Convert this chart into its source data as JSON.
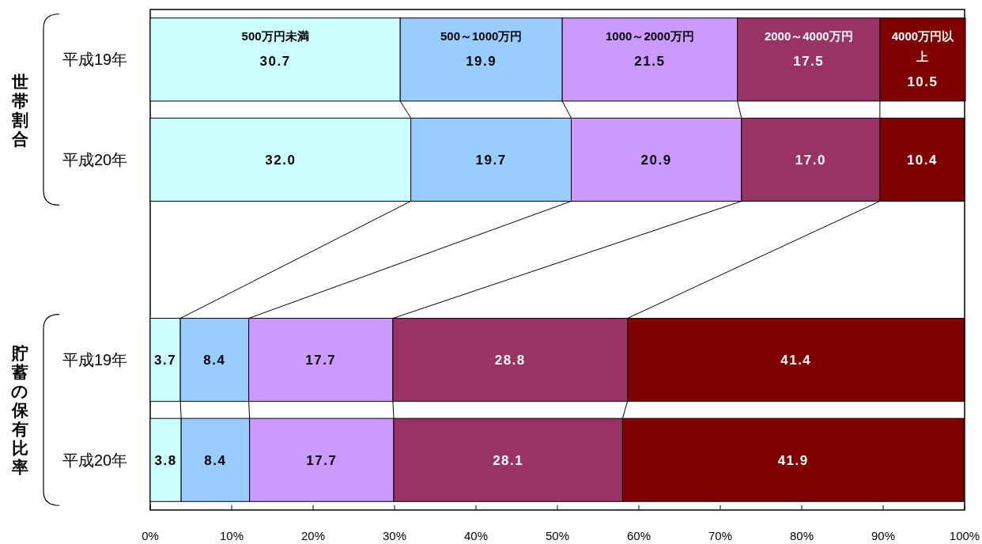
{
  "chart_data": {
    "type": "bar",
    "orientation": "horizontal",
    "stacked": true,
    "categories": [
      "平成19年",
      "平成20年",
      null,
      "平成19年",
      "平成20年"
    ],
    "series": [
      {
        "name": "500万円未満",
        "color": "#ccffff",
        "values": [
          30.7,
          32.0,
          null,
          3.7,
          3.8
        ],
        "value_labels": [
          "30.7",
          "32.0",
          null,
          "3.7",
          "3.8"
        ]
      },
      {
        "name": "500～1000万円",
        "color": "#99ccff",
        "values": [
          19.9,
          19.7,
          null,
          8.4,
          8.4
        ],
        "value_labels": [
          "19.9",
          "19.7",
          null,
          "8.4",
          "8.4"
        ]
      },
      {
        "name": "1000～2000万円",
        "color": "#cc99ff",
        "values": [
          21.5,
          20.9,
          null,
          17.7,
          17.7
        ],
        "value_labels": [
          "21.5",
          "20.9",
          null,
          "17.7",
          "17.7"
        ]
      },
      {
        "name": "2000～4000万円",
        "color": "#993366",
        "values": [
          17.5,
          17.0,
          null,
          28.8,
          28.1
        ],
        "value_labels": [
          "17.5",
          "17.0",
          null,
          "28.8",
          "28.1"
        ]
      },
      {
        "name": "4000万円以上",
        "color": "#800000",
        "values": [
          10.5,
          10.4,
          null,
          41.4,
          41.9
        ],
        "value_labels": [
          "10.5",
          "10.4",
          null,
          "41.4",
          "41.9"
        ]
      }
    ],
    "xlim": [
      0,
      100
    ],
    "xticks": [
      {
        "value": 0,
        "label": "0%"
      },
      {
        "value": 10,
        "label": "10%"
      },
      {
        "value": 20,
        "label": "20%"
      },
      {
        "value": 30,
        "label": "30%"
      },
      {
        "value": 40,
        "label": "40%"
      },
      {
        "value": 50,
        "label": "50%"
      },
      {
        "value": 60,
        "label": "60%"
      },
      {
        "value": 70,
        "label": "70%"
      },
      {
        "value": 80,
        "label": "80%"
      },
      {
        "value": 90,
        "label": "90%"
      },
      {
        "value": 100,
        "label": "100%"
      }
    ],
    "annotations": [
      "世帯割合",
      "貯蓄の保有比率"
    ]
  }
}
